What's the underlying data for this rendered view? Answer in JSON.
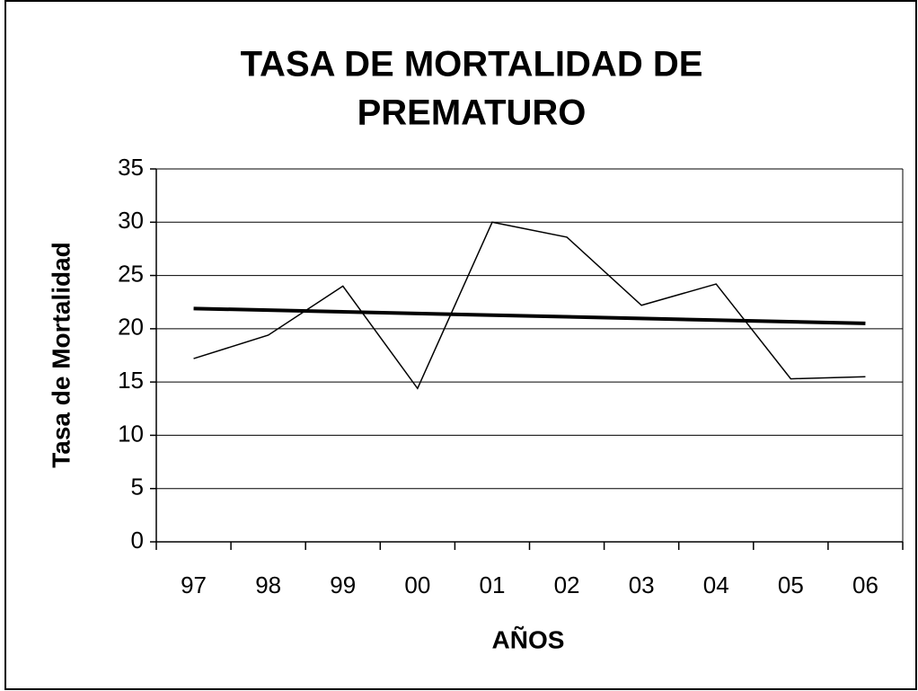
{
  "chart_data": {
    "type": "line",
    "title": [
      "TASA DE MORTALIDAD DE",
      "PREMATURO"
    ],
    "x_label": "AÑOS",
    "y_label": "Tasa de Mortalidad",
    "categories": [
      "97",
      "98",
      "99",
      "00",
      "01",
      "02",
      "03",
      "04",
      "05",
      "06"
    ],
    "series": [
      {
        "color": "#000000",
        "values": [
          17.2,
          19.4,
          24,
          14.4,
          30,
          28.6,
          22.2,
          24.2,
          15.3,
          15.5
        ]
      }
    ],
    "trendline": {
      "color": "#000000",
      "values": [
        21.9,
        20.5
      ]
    },
    "ylim": [
      0,
      35
    ],
    "yticks": [
      0,
      5,
      10,
      15,
      20,
      25,
      30,
      35
    ],
    "grid": true
  }
}
